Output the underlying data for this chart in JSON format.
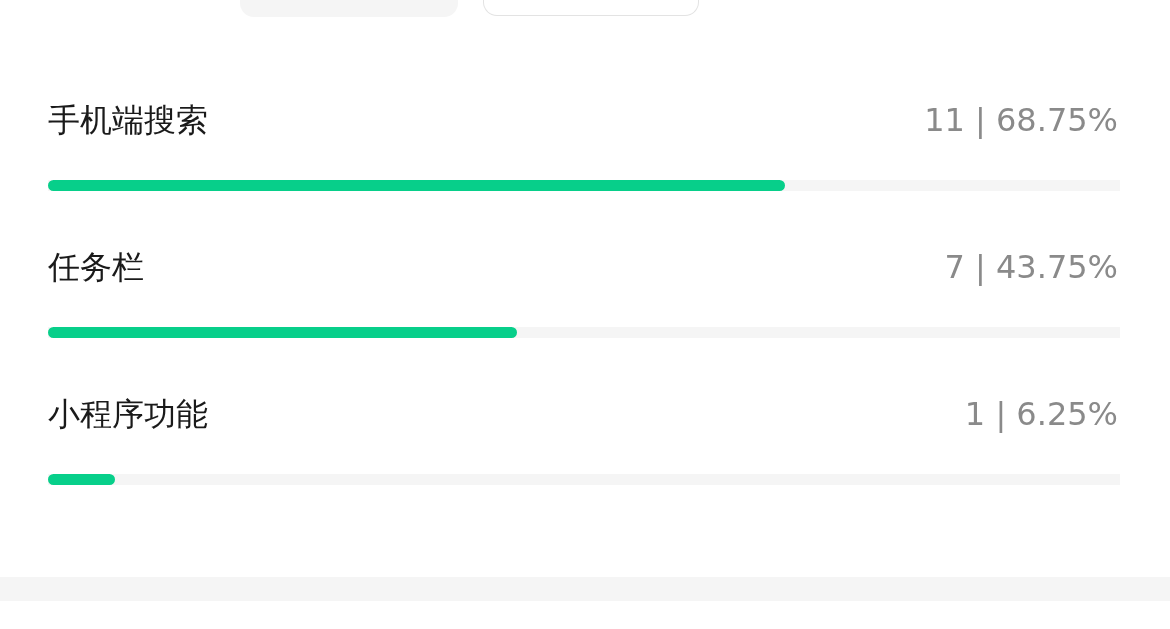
{
  "chart_data": {
    "type": "bar",
    "orientation": "horizontal",
    "categories": [
      "手机端搜索",
      "任务栏",
      "小程序功能"
    ],
    "values": [
      68.75,
      43.75,
      6.25
    ],
    "value_labels": [
      "11 | 68.75%",
      "7 | 43.75%",
      "1 | 6.25%"
    ],
    "color": "#07cf8a",
    "xlim": [
      0,
      100
    ]
  }
}
